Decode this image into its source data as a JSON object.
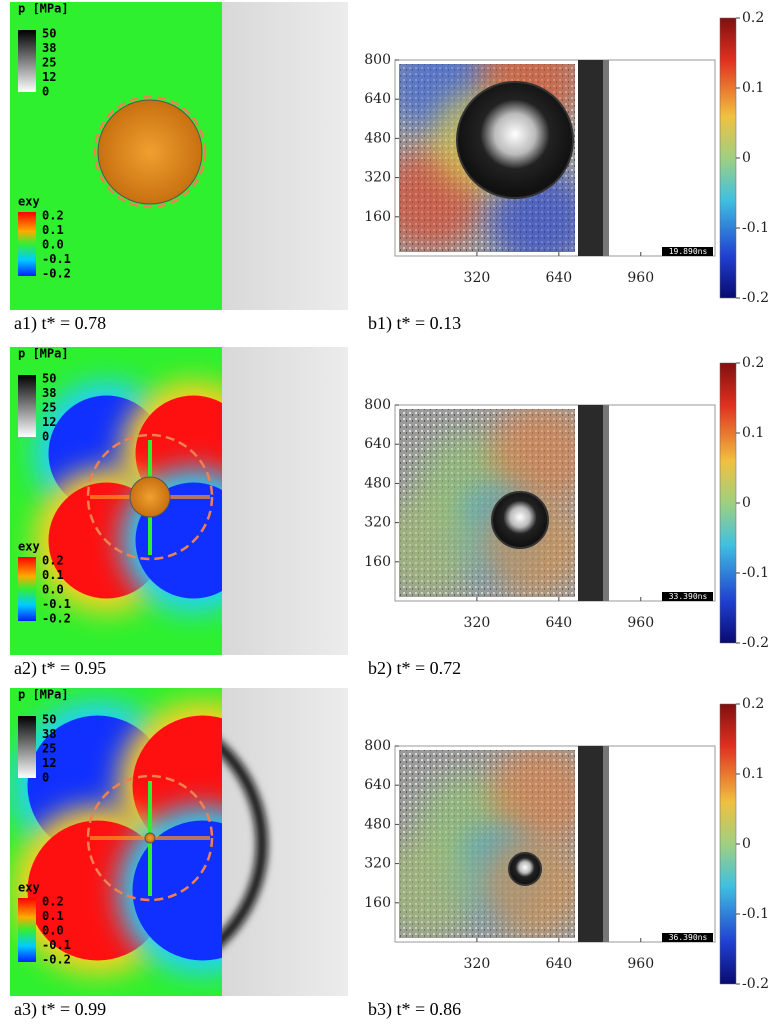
{
  "rows": [
    {
      "simulation": {
        "caption": "a1) t* = 0.78",
        "pressure_legend": {
          "title": "p [MPa]",
          "labels": [
            "50",
            "38",
            "25",
            "12",
            "0"
          ]
        },
        "strain_legend": {
          "title": "exy",
          "labels": [
            "0.2",
            "0.1",
            "0.0",
            "-0.1",
            "-0.2"
          ]
        }
      },
      "experiment": {
        "caption": "b1) t* = 0.13",
        "timestamp": "19.890ns",
        "xlim": [
          0,
          1250
        ],
        "ylim": [
          0,
          800
        ],
        "xticks": [
          320,
          640,
          960
        ],
        "yticks": [
          160,
          320,
          480,
          640,
          800
        ],
        "colorbar_lim": [
          -0.2,
          0.2
        ],
        "colorbar_ticks": [
          0.2,
          0.1,
          0,
          -0.1,
          -0.2
        ]
      }
    },
    {
      "simulation": {
        "caption": "a2) t* = 0.95",
        "pressure_legend": {
          "title": "p [MPa]",
          "labels": [
            "50",
            "38",
            "25",
            "12",
            "0"
          ]
        },
        "strain_legend": {
          "title": "exy",
          "labels": [
            "0.2",
            "0.1",
            "0.0",
            "-0.1",
            "-0.2"
          ]
        }
      },
      "experiment": {
        "caption": "b2) t* = 0.72",
        "timestamp": "33.390ns",
        "xlim": [
          0,
          1250
        ],
        "ylim": [
          0,
          800
        ],
        "xticks": [
          320,
          640,
          960
        ],
        "yticks": [
          160,
          320,
          480,
          640,
          800
        ],
        "colorbar_lim": [
          -0.2,
          0.2
        ],
        "colorbar_ticks": [
          0.2,
          0.1,
          0,
          -0.1,
          -0.2
        ]
      }
    },
    {
      "simulation": {
        "caption": "a3) t* = 0.99",
        "pressure_legend": {
          "title": "p [MPa]",
          "labels": [
            "50",
            "38",
            "25",
            "12",
            "0"
          ]
        },
        "strain_legend": {
          "title": "exy",
          "labels": [
            "0.2",
            "0.1",
            "0.0",
            "-0.1",
            "-0.2"
          ]
        }
      },
      "experiment": {
        "caption": "b3) t* = 0.86",
        "timestamp": "36.390ns",
        "xlim": [
          0,
          1250
        ],
        "ylim": [
          0,
          800
        ],
        "xticks": [
          320,
          640,
          960
        ],
        "yticks": [
          160,
          320,
          480,
          640,
          800
        ],
        "colorbar_lim": [
          -0.2,
          0.2
        ],
        "colorbar_ticks": [
          0.2,
          0.1,
          0,
          -0.1,
          -0.2
        ]
      }
    }
  ]
}
